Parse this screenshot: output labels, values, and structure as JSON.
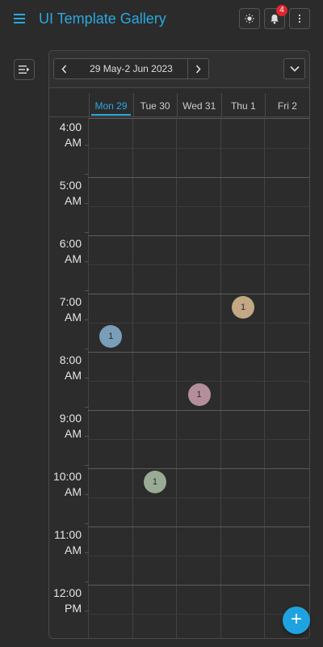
{
  "app": {
    "title": "UI Template Gallery",
    "notification_count": "4",
    "accent_color": "#2aa9e0",
    "icons": {
      "menu": "hamburger-icon",
      "theme": "sun-icon",
      "notifications": "bell-icon",
      "more": "more-vertical-icon",
      "list": "list-arrow-icon"
    }
  },
  "scheduler": {
    "date_range": "29 May-2 Jun 2023",
    "view_icon": "chevron-down-icon",
    "days": [
      {
        "label": "Mon 29",
        "active": true
      },
      {
        "label": "Tue 30",
        "active": false
      },
      {
        "label": "Wed 31",
        "active": false
      },
      {
        "label": "Thu 1",
        "active": false
      },
      {
        "label": "Fri 2",
        "active": false
      }
    ],
    "hours": [
      {
        "time": "4:00",
        "period": "AM"
      },
      {
        "time": "5:00",
        "period": "AM"
      },
      {
        "time": "6:00",
        "period": "AM"
      },
      {
        "time": "7:00",
        "period": "AM"
      },
      {
        "time": "8:00",
        "period": "AM"
      },
      {
        "time": "9:00",
        "period": "AM"
      },
      {
        "time": "10:00",
        "period": "AM"
      },
      {
        "time": "11:00",
        "period": "AM"
      },
      {
        "time": "12:00",
        "period": "PM"
      }
    ],
    "events": [
      {
        "day": "Mon 29",
        "time": "7:30",
        "count": "1",
        "color": "#7a9db8"
      },
      {
        "day": "Tue 30",
        "time": "10:00",
        "count": "1",
        "color": "#9aab95"
      },
      {
        "day": "Wed 31",
        "time": "8:30",
        "count": "1",
        "color": "#b48f9b"
      },
      {
        "day": "Thu 1",
        "time": "7:00",
        "count": "1",
        "color": "#c2a883"
      }
    ]
  },
  "fab": {
    "label": "+"
  }
}
